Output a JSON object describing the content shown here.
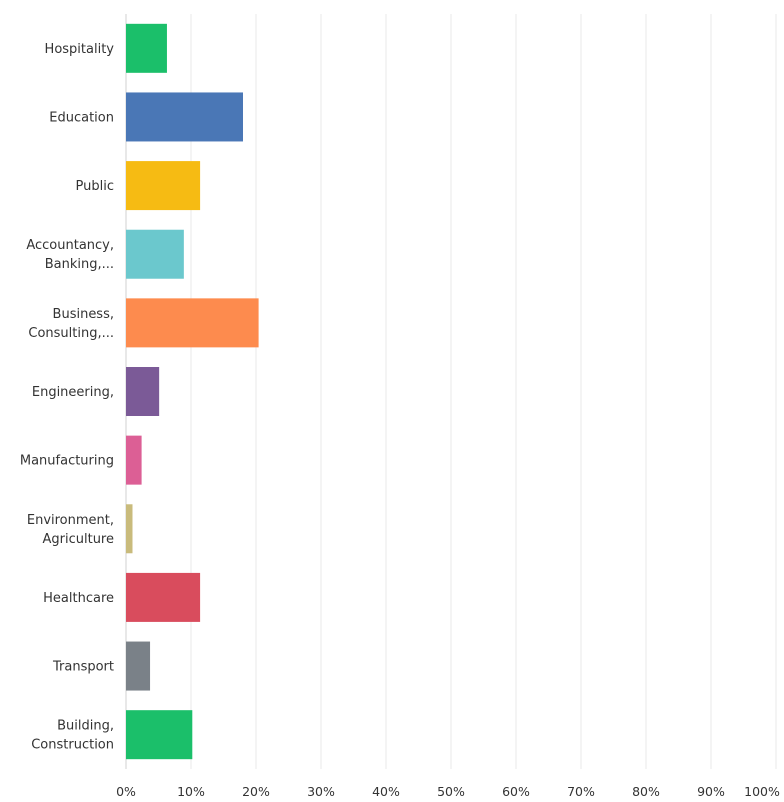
{
  "chart_data": {
    "type": "bar",
    "orientation": "horizontal",
    "title": "",
    "xlabel": "",
    "ylabel": "",
    "xlim": [
      0,
      100
    ],
    "x_ticks": [
      "0%",
      "10%",
      "20%",
      "30%",
      "40%",
      "50%",
      "60%",
      "70%",
      "80%",
      "90%",
      "100%"
    ],
    "grid": true,
    "categories": [
      [
        "Hospitality"
      ],
      [
        "Education"
      ],
      [
        "Public"
      ],
      [
        "Accountancy,",
        "Banking,..."
      ],
      [
        "Business,",
        "Consulting,..."
      ],
      [
        "Engineering,"
      ],
      [
        "Manufacturing"
      ],
      [
        "Environment,",
        "Agriculture"
      ],
      [
        "Healthcare"
      ],
      [
        "Transport"
      ],
      [
        "Building,",
        "Construction"
      ]
    ],
    "values": [
      6.3,
      18.0,
      11.4,
      8.9,
      20.4,
      5.1,
      2.4,
      1.0,
      11.4,
      3.7,
      10.2
    ],
    "colors": [
      "#1bbf6a",
      "#4a77b6",
      "#f6bb13",
      "#6bc8cd",
      "#fd8b4e",
      "#7b5a97",
      "#dc5f95",
      "#c9bb7c",
      "#d94c5d",
      "#7a8188",
      "#1bbf6a"
    ]
  }
}
